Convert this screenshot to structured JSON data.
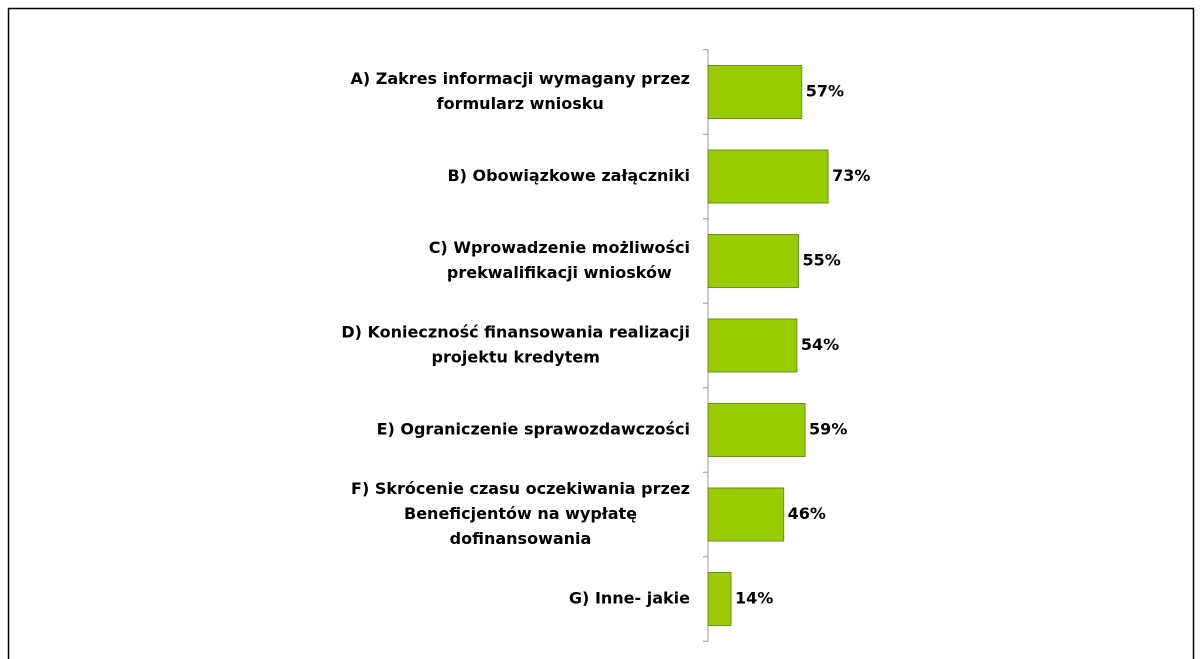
{
  "chart_data": {
    "type": "bar",
    "orientation": "horizontal",
    "categories": [
      [
        "A) Zakres informacji wymagany przez",
        "formularz wniosku"
      ],
      [
        "B) Obowiązkowe załączniki"
      ],
      [
        "C) Wprowadzenie możliwości",
        "prekwalifikacji wniosków"
      ],
      [
        "D) Konieczność finansowania realizacji",
        "projektu kredytem"
      ],
      [
        "E) Ograniczenie sprawozdawczości"
      ],
      [
        "F) Skrócenie czasu oczekiwania przez",
        "Beneficjentów na wypłatę",
        "dofinansowania"
      ],
      [
        "G) Inne- jakie"
      ]
    ],
    "values": [
      57,
      73,
      55,
      54,
      59,
      46,
      14
    ],
    "value_labels": [
      "57%",
      "73%",
      "55%",
      "54%",
      "59%",
      "46%",
      "14%"
    ],
    "color": "#99cc00"
  }
}
